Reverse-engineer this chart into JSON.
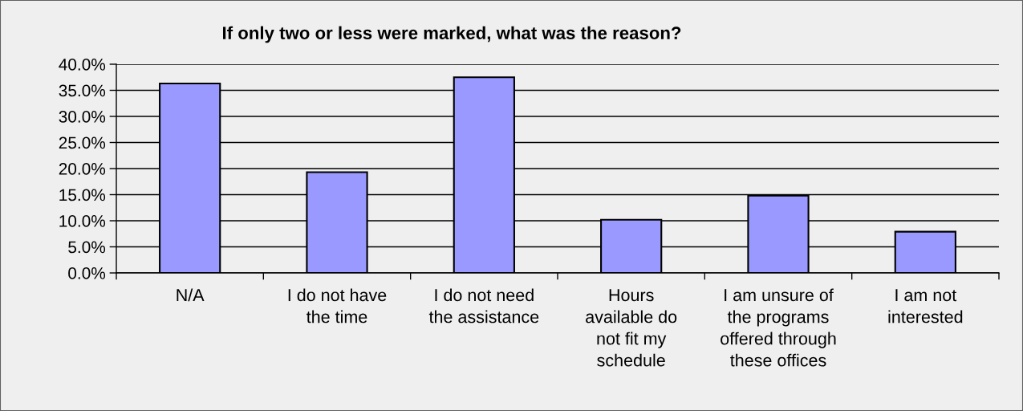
{
  "chart_data": {
    "type": "bar",
    "title": "If only two or less were marked, what was the reason?",
    "categories": [
      "N/A",
      "I do not have\nthe time",
      "I do not need\nthe assistance",
      "Hours\navailable do\nnot fit my\nschedule",
      "I am unsure of\nthe programs\noffered through\nthese offices",
      "I am not\ninterested"
    ],
    "values": [
      36.3,
      19.3,
      37.5,
      10.2,
      14.8,
      7.9
    ],
    "color": "#9999ff",
    "ylim": [
      0,
      40
    ],
    "yticks": [
      {
        "value": 0,
        "label": "0.0%"
      },
      {
        "value": 5,
        "label": "5.0%"
      },
      {
        "value": 10,
        "label": "10.0%"
      },
      {
        "value": 15,
        "label": "15.0%"
      },
      {
        "value": 20,
        "label": "20.0%"
      },
      {
        "value": 25,
        "label": "25.0%"
      },
      {
        "value": 30,
        "label": "30.0%"
      },
      {
        "value": 35,
        "label": "35.0%"
      },
      {
        "value": 40,
        "label": "40.0%"
      }
    ],
    "grid": "y",
    "legend": false
  }
}
